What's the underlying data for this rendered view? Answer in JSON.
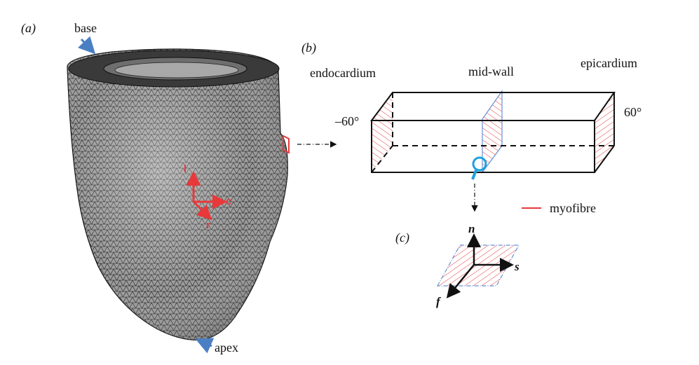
{
  "panels": {
    "a": "(a)",
    "b": "(b)",
    "c": "(c)"
  },
  "heart": {
    "base_label": "base",
    "apex_label": "apex",
    "local_axes": {
      "l": "l",
      "c": "c",
      "r": "r"
    }
  },
  "wall_block": {
    "endocardium": "endocardium",
    "mid_wall": "mid-wall",
    "epicardium": "epicardium",
    "endo_angle": "–60°",
    "epi_angle": "60°"
  },
  "legend": {
    "myofibre": "myofibre"
  },
  "fibre_frame": {
    "n": "n",
    "s": "s",
    "f": "f"
  },
  "colors": {
    "mesh_fill": "#8a8a8a",
    "mesh_line": "#1a1a1a",
    "fibre_red": "#e8383a",
    "callout_blue": "#4a7fc4",
    "loupe_blue": "#1ea0dc",
    "plane_blue": "#6a8fd0"
  }
}
